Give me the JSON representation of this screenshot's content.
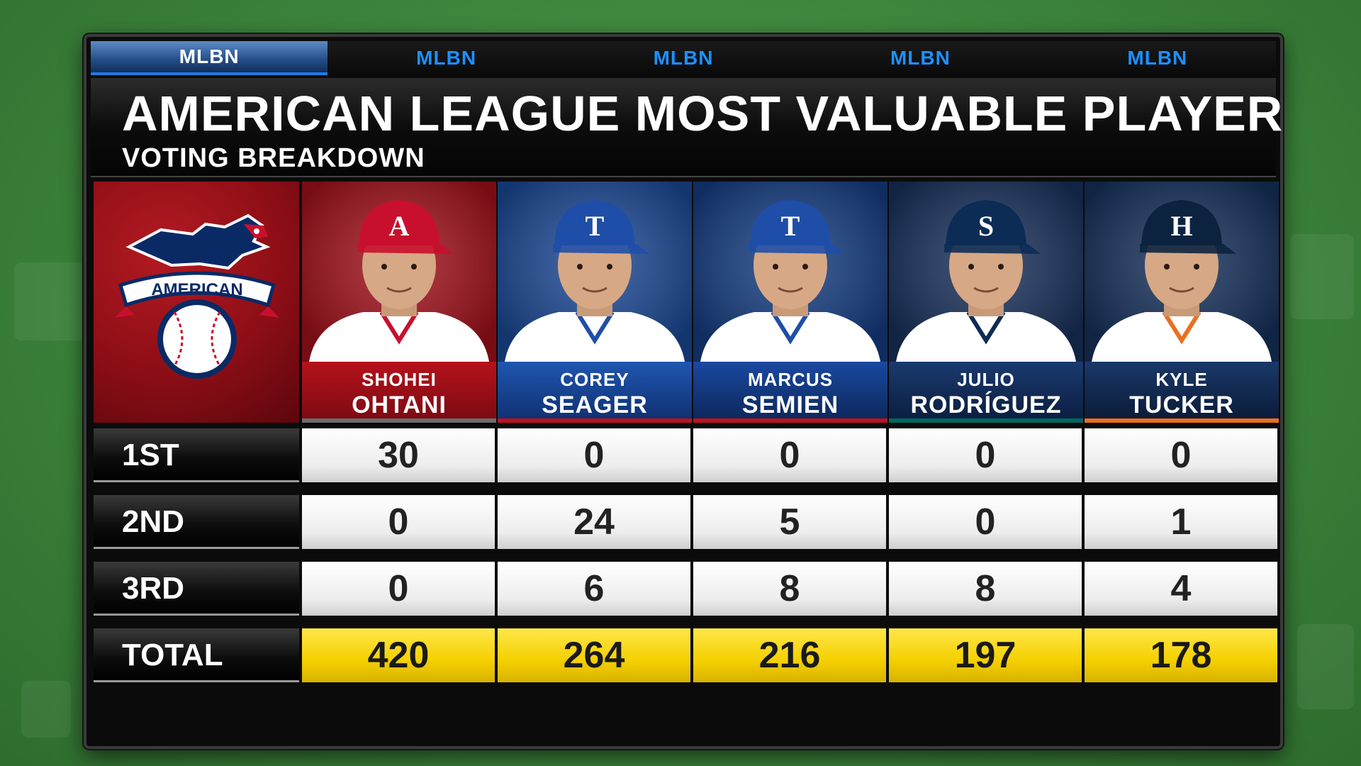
{
  "network_tabs": [
    "MLBN",
    "MLBN",
    "MLBN",
    "MLBN",
    "MLBN"
  ],
  "title": "AMERICAN LEAGUE MOST VALUABLE PLAYER",
  "subtitle": "VOTING BREAKDOWN",
  "logo": {
    "text": "AMERICAN",
    "icon": "american-league-eagle-logo"
  },
  "players": [
    {
      "first": "SHOHEI",
      "last": "OHTANI",
      "team_letter": "A",
      "cap_color": "#c8102e",
      "bg": "#a0101a",
      "plate_top": "#b5121b",
      "plate_bottom": "#7a0a12",
      "accent": "#6c6c6c",
      "jersey": "#ffffff",
      "piping": "#c8102e"
    },
    {
      "first": "COREY",
      "last": "SEAGER",
      "team_letter": "T",
      "cap_color": "#1f4ea8",
      "bg": "#1b4894",
      "plate_top": "#1f56b0",
      "plate_bottom": "#0f2f6e",
      "accent": "#c0111f",
      "jersey": "#ffffff",
      "piping": "#1f4ea8"
    },
    {
      "first": "MARCUS",
      "last": "SEMIEN",
      "team_letter": "T",
      "cap_color": "#1f4ea8",
      "bg": "#143c80",
      "plate_top": "#1a49a0",
      "plate_bottom": "#0c2658",
      "accent": "#c0111f",
      "jersey": "#ffffff",
      "piping": "#1f4ea8"
    },
    {
      "first": "JULIO",
      "last": "RODRÍGUEZ",
      "team_letter": "S",
      "cap_color": "#0c2c56",
      "bg": "#18305a",
      "plate_top": "#1a3a6e",
      "plate_bottom": "#0a1d3e",
      "accent": "#00685e",
      "jersey": "#ffffff",
      "piping": "#0c2c56"
    },
    {
      "first": "KYLE",
      "last": "TUCKER",
      "team_letter": "H",
      "cap_color": "#0c2340",
      "bg": "#15305a",
      "plate_top": "#1a3868",
      "plate_bottom": "#0a1a36",
      "accent": "#eb6e1f",
      "jersey": "#ffffff",
      "piping": "#eb6e1f"
    }
  ],
  "rows": [
    {
      "label": "1ST",
      "values": [
        "30",
        "0",
        "0",
        "0",
        "0"
      ],
      "is_total": false
    },
    {
      "label": "2ND",
      "values": [
        "0",
        "24",
        "5",
        "0",
        "1"
      ],
      "is_total": false
    },
    {
      "label": "3RD",
      "values": [
        "0",
        "6",
        "8",
        "8",
        "4"
      ],
      "is_total": false
    },
    {
      "label": "TOTAL",
      "values": [
        "420",
        "264",
        "216",
        "197",
        "178"
      ],
      "is_total": true
    }
  ]
}
